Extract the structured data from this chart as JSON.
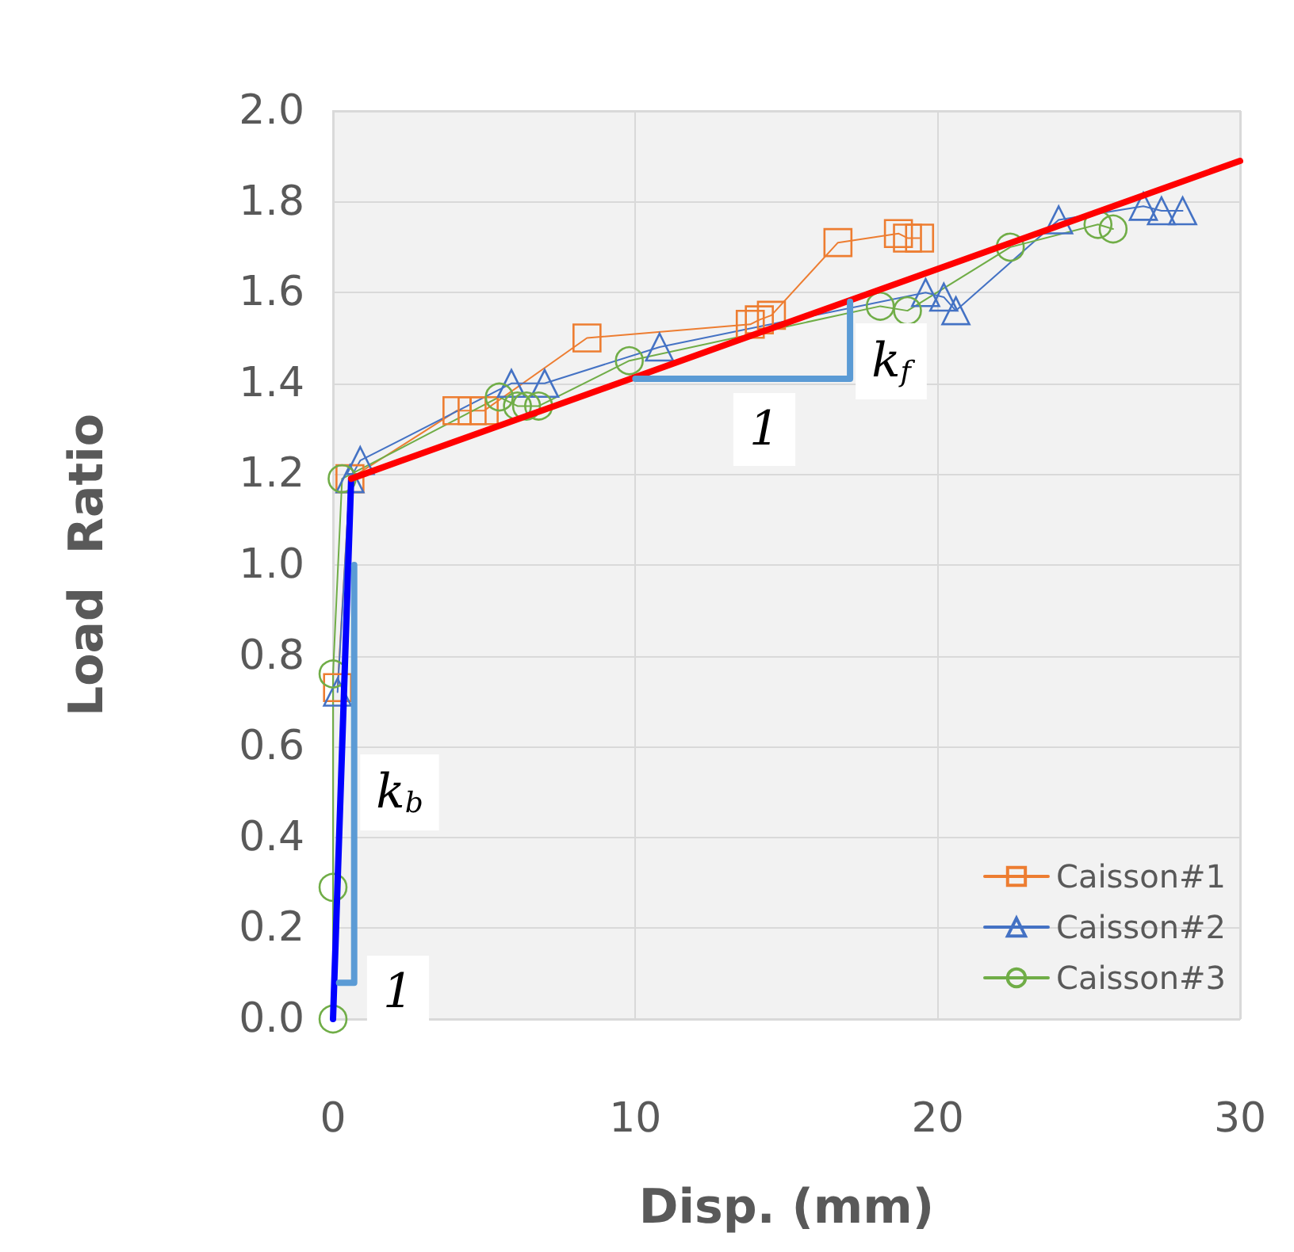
{
  "chart_data": {
    "type": "line",
    "xlabel": "Disp. (mm)",
    "ylabel": "Load  Ratio",
    "xlim": [
      0,
      30
    ],
    "xticks": [
      0,
      10,
      20,
      30
    ],
    "ylim": [
      0,
      2
    ],
    "yticks": [
      {
        "value": 0,
        "label": "0.0"
      },
      {
        "value": 0.2,
        "label": "0.2"
      },
      {
        "value": 0.4,
        "label": "0.4"
      },
      {
        "value": 0.6,
        "label": "0.6"
      },
      {
        "value": 0.8,
        "label": "0.8"
      },
      {
        "value": 1,
        "label": "1.0"
      },
      {
        "value": 1.2,
        "label": "1.2"
      },
      {
        "value": 1.4,
        "label": "1.4"
      },
      {
        "value": 1.6,
        "label": "1.6"
      },
      {
        "value": 1.8,
        "label": "1.8"
      },
      {
        "value": 2,
        "label": "2.0"
      }
    ],
    "grid": true,
    "legend": "bottom right",
    "series": [
      {
        "name": "Caisson#1",
        "color": "#ed7d31",
        "marker": "square",
        "x": [
          0.15,
          0.56,
          4.1,
          4.6,
          5.0,
          8.4,
          13.8,
          14.1,
          14.5,
          16.7,
          18.7,
          19.0,
          19.4
        ],
        "values": [
          0.73,
          1.19,
          1.34,
          1.34,
          1.34,
          1.5,
          1.53,
          1.54,
          1.55,
          1.71,
          1.73,
          1.72,
          1.72
        ]
      },
      {
        "name": "Caisson#2",
        "color": "#4472c4",
        "marker": "triangle",
        "x": [
          0.15,
          0.56,
          0.9,
          5.9,
          7.0,
          10.8,
          19.6,
          20.2,
          20.6,
          24.0,
          26.8,
          27.4,
          28.1
        ],
        "values": [
          0.72,
          1.19,
          1.23,
          1.4,
          1.4,
          1.48,
          1.6,
          1.59,
          1.56,
          1.76,
          1.79,
          1.78,
          1.78
        ]
      },
      {
        "name": "Caisson#3",
        "color": "#70ad47",
        "marker": "circle",
        "x": [
          0,
          0,
          0,
          0.3,
          5.5,
          6.1,
          6.4,
          6.8,
          9.8,
          18.1,
          19.0,
          22.4,
          25.3,
          25.8
        ],
        "values": [
          0,
          0.29,
          0.76,
          1.19,
          1.37,
          1.35,
          1.35,
          1.35,
          1.45,
          1.57,
          1.56,
          1.7,
          1.75,
          1.74
        ]
      },
      {
        "color": "#0000ff",
        "marker": "none",
        "x": [
          0,
          0.6
        ],
        "values": [
          0,
          1.19
        ]
      },
      {
        "color": "#ff0000",
        "marker": "none",
        "x": [
          0.6,
          30
        ],
        "values": [
          1.19,
          1.89
        ]
      },
      {
        "color": "#5b9bd5",
        "marker": "none",
        "x": [
          0.2,
          0.7,
          0.7
        ],
        "values": [
          0.08,
          0.08,
          1.0
        ]
      },
      {
        "color": "#5b9bd5",
        "marker": "none",
        "x": [
          10,
          17.1,
          17.1
        ],
        "values": [
          1.41,
          1.41,
          1.58
        ]
      }
    ],
    "annotations": [
      "k$_{f}$",
      "1",
      "k$_{b}$",
      "1"
    ]
  }
}
